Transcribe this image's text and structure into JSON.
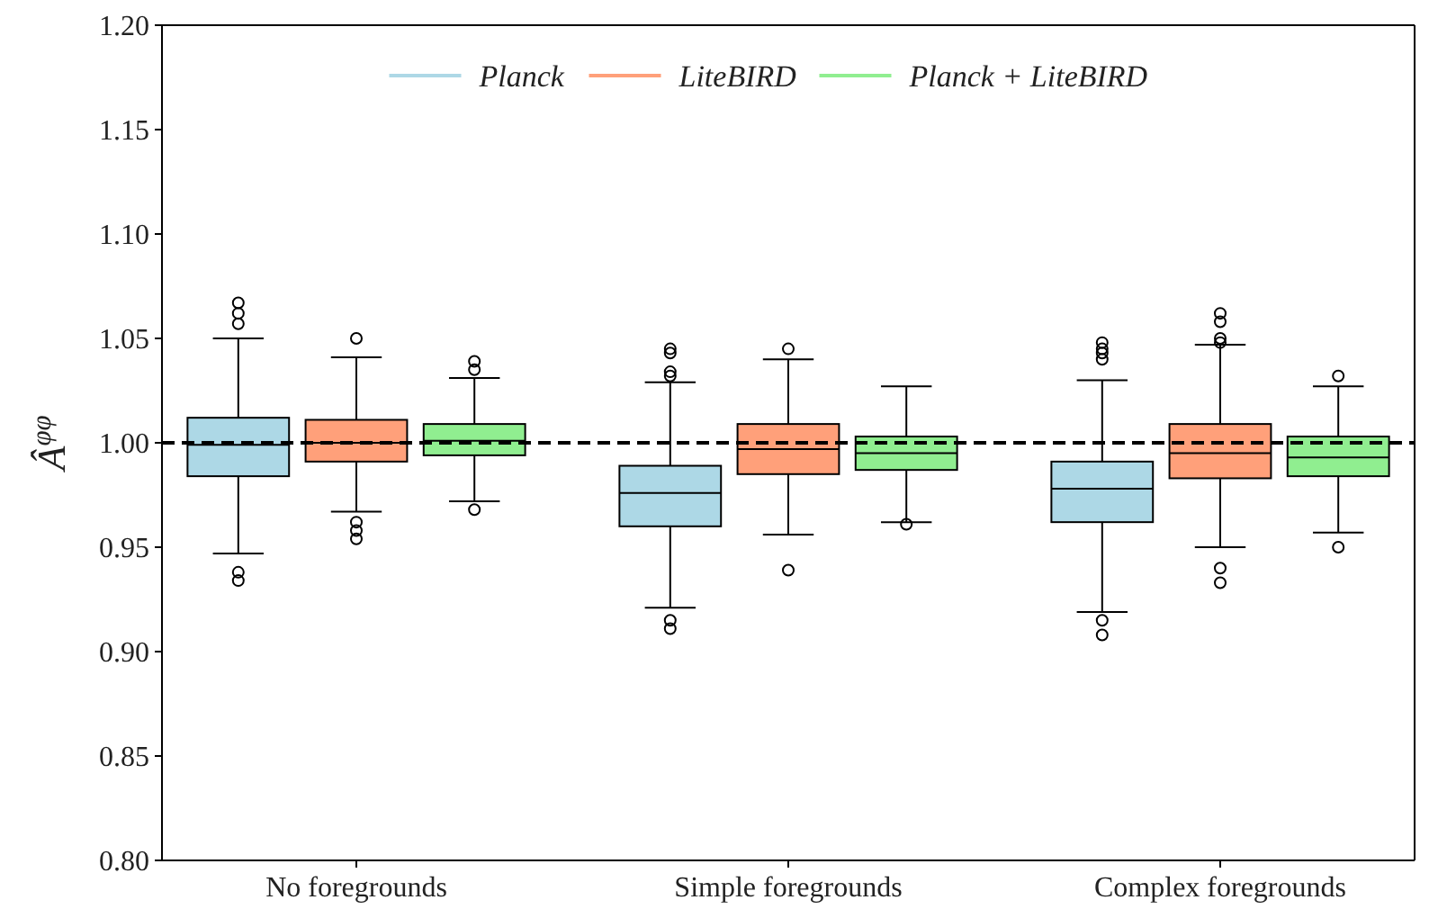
{
  "chart_data": {
    "type": "box",
    "ylabel": "Â$^{φφ}$",
    "categories": [
      "No foregrounds",
      "Simple foregrounds",
      "Complex foregrounds"
    ],
    "ylim": [
      0.8,
      1.2
    ],
    "yticks": [
      {
        "value": 0.8,
        "label": "0.80"
      },
      {
        "value": 0.85,
        "label": "0.85"
      },
      {
        "value": 0.9,
        "label": "0.90"
      },
      {
        "value": 0.95,
        "label": "0.95"
      },
      {
        "value": 1.0,
        "label": "1.00"
      },
      {
        "value": 1.05,
        "label": "1.05"
      },
      {
        "value": 1.1,
        "label": "1.10"
      },
      {
        "value": 1.15,
        "label": "1.15"
      },
      {
        "value": 1.2,
        "label": "1.20"
      }
    ],
    "legend": "top",
    "grid": false,
    "ref_lines": [
      {
        "axis": "y",
        "value": 1.0,
        "color": "#000000",
        "line_style": "dashed"
      }
    ],
    "series": [
      {
        "name": "Planck",
        "color": "#add8e6",
        "boxes": [
          {
            "low": 0.947,
            "q1": 0.984,
            "median": 0.999,
            "q3": 1.012,
            "high": 1.05,
            "outliers": [
              1.067,
              1.062,
              1.057,
              0.938,
              0.934
            ]
          },
          {
            "low": 0.921,
            "q1": 0.96,
            "median": 0.976,
            "q3": 0.989,
            "high": 1.029,
            "outliers": [
              1.045,
              1.043,
              1.034,
              1.032,
              0.915,
              0.911
            ]
          },
          {
            "low": 0.919,
            "q1": 0.962,
            "median": 0.978,
            "q3": 0.991,
            "high": 1.03,
            "outliers": [
              1.048,
              1.045,
              1.043,
              1.04,
              0.915,
              0.908
            ]
          }
        ]
      },
      {
        "name": "LiteBIRD",
        "color": "#ffa07a",
        "boxes": [
          {
            "low": 0.967,
            "q1": 0.991,
            "median": 1.0,
            "q3": 1.011,
            "high": 1.041,
            "outliers": [
              1.05,
              0.962,
              0.958,
              0.954
            ]
          },
          {
            "low": 0.956,
            "q1": 0.985,
            "median": 0.997,
            "q3": 1.009,
            "high": 1.04,
            "outliers": [
              1.045,
              0.939
            ]
          },
          {
            "low": 0.95,
            "q1": 0.983,
            "median": 0.995,
            "q3": 1.009,
            "high": 1.047,
            "outliers": [
              1.062,
              1.058,
              1.05,
              1.048,
              0.94,
              0.933
            ]
          }
        ]
      },
      {
        "name": "Planck + LiteBIRD",
        "color": "#90ee90",
        "boxes": [
          {
            "low": 0.972,
            "q1": 0.994,
            "median": 1.001,
            "q3": 1.009,
            "high": 1.031,
            "outliers": [
              1.039,
              1.035,
              0.968
            ]
          },
          {
            "low": 0.962,
            "q1": 0.987,
            "median": 0.995,
            "q3": 1.003,
            "high": 1.027,
            "outliers": [
              0.961
            ]
          },
          {
            "low": 0.957,
            "q1": 0.984,
            "median": 0.993,
            "q3": 1.003,
            "high": 1.027,
            "outliers": [
              1.032,
              0.95
            ]
          }
        ]
      }
    ]
  }
}
